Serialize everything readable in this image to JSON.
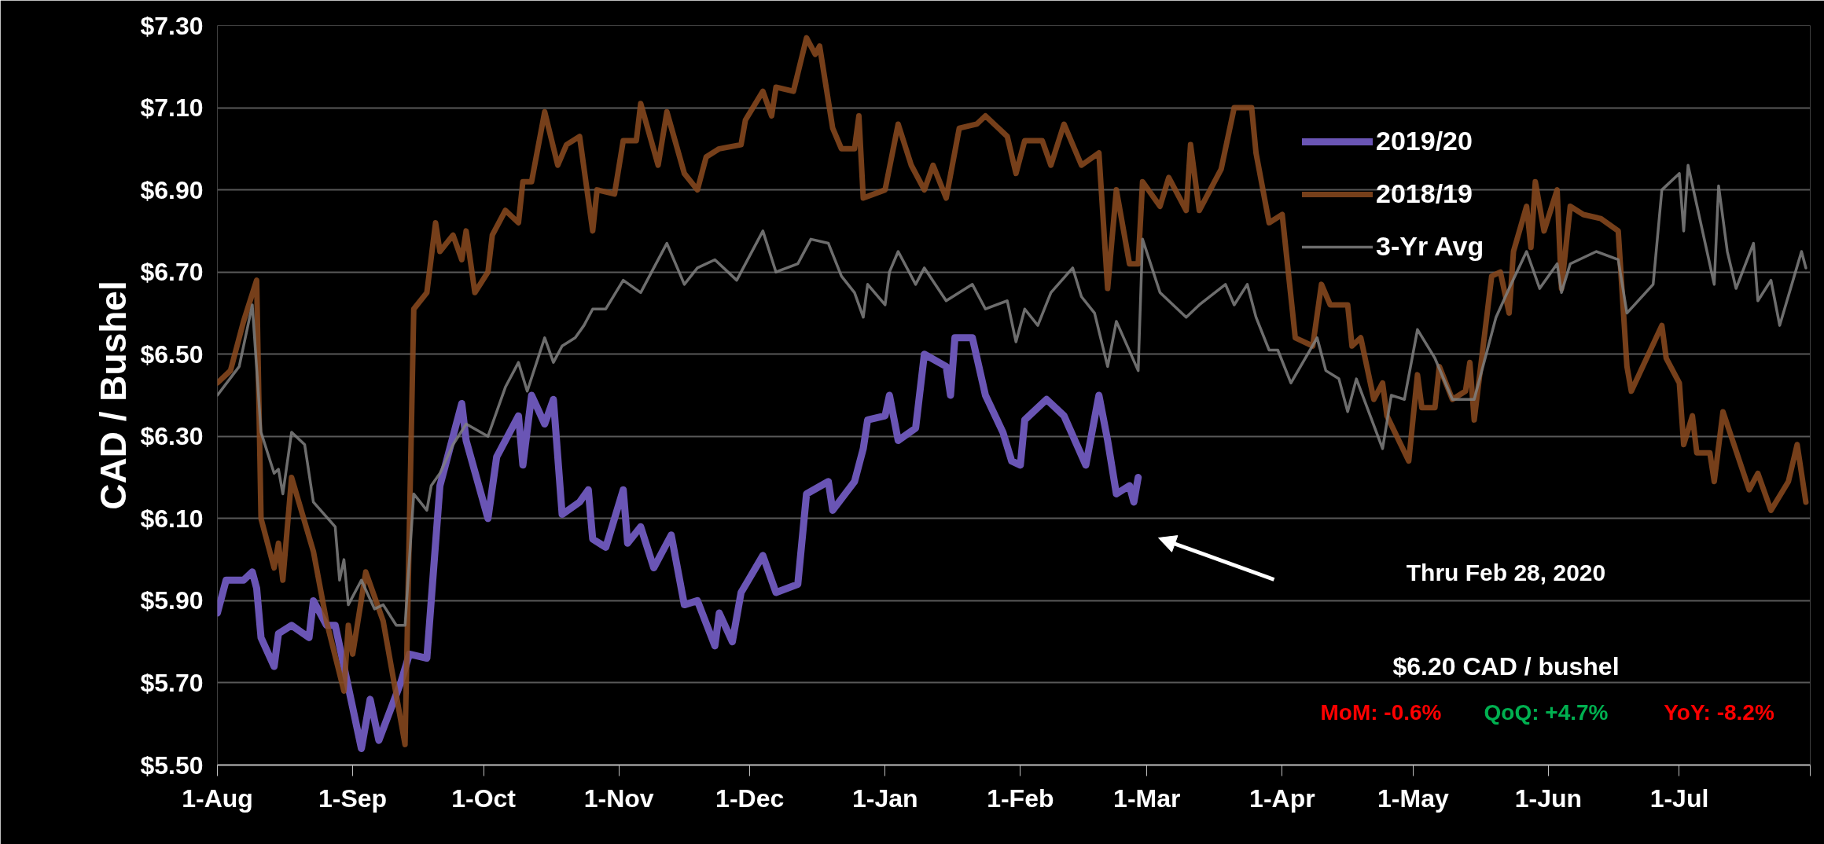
{
  "chart_data": {
    "type": "line",
    "ylabel": "CAD / Bushel",
    "xlim": [
      "2019-08-01",
      "2020-07-31"
    ],
    "xticks": [
      {
        "value": "2019-08-01",
        "label": "1-Aug"
      },
      {
        "value": "2019-09-01",
        "label": "1-Sep"
      },
      {
        "value": "2019-10-01",
        "label": "1-Oct"
      },
      {
        "value": "2019-11-01",
        "label": "1-Nov"
      },
      {
        "value": "2019-12-01",
        "label": "1-Dec"
      },
      {
        "value": "2020-01-01",
        "label": "1-Jan"
      },
      {
        "value": "2020-02-01",
        "label": "1-Feb"
      },
      {
        "value": "2020-03-01",
        "label": "1-Mar"
      },
      {
        "value": "2020-04-01",
        "label": "1-Apr"
      },
      {
        "value": "2020-05-01",
        "label": "1-May"
      },
      {
        "value": "2020-06-01",
        "label": "1-Jun"
      },
      {
        "value": "2020-07-01",
        "label": "1-Jul"
      },
      {
        "value": "2020-07-31",
        "label": null
      }
    ],
    "ylim": [
      5.5,
      7.3
    ],
    "yticks": [
      {
        "value": 5.5,
        "label": "$5.50"
      },
      {
        "value": 5.7,
        "label": "$5.70"
      },
      {
        "value": 5.9,
        "label": "$5.90"
      },
      {
        "value": 6.1,
        "label": "$6.10"
      },
      {
        "value": 6.3,
        "label": "$6.30"
      },
      {
        "value": 6.5,
        "label": "$6.50"
      },
      {
        "value": 6.7,
        "label": "$6.70"
      },
      {
        "value": 6.9,
        "label": "$6.90"
      },
      {
        "value": 7.1,
        "label": "$7.10"
      },
      {
        "value": 7.3,
        "label": "$7.30"
      }
    ],
    "grid": "y",
    "legend": "top right",
    "marker": "none",
    "line_style": "solid",
    "annotations": [
      "Thru Feb 28, 2020",
      "$6.20 CAD / bushel",
      "MoM: -0.6%",
      "QoQ: +4.7%",
      "YoY: -8.2%"
    ],
    "series": [
      {
        "name": "2019/20",
        "color": "#6a55b5",
        "x": [
          "2019-08-01",
          "2019-08-03",
          "2019-08-07",
          "2019-08-09",
          "2019-08-10",
          "2019-08-11",
          "2019-08-14",
          "2019-08-15",
          "2019-08-18",
          "2019-08-22",
          "2019-08-23",
          "2019-08-26",
          "2019-08-28",
          "2019-09-03",
          "2019-09-05",
          "2019-09-07",
          "2019-09-12",
          "2019-09-14",
          "2019-09-18",
          "2019-09-21",
          "2019-09-26",
          "2019-09-27",
          "2019-10-02",
          "2019-10-04",
          "2019-10-09",
          "2019-10-10",
          "2019-10-12",
          "2019-10-15",
          "2019-10-17",
          "2019-10-19",
          "2019-10-23",
          "2019-10-25",
          "2019-10-26",
          "2019-10-29",
          "2019-11-02",
          "2019-11-03",
          "2019-11-06",
          "2019-11-09",
          "2019-11-13",
          "2019-11-16",
          "2019-11-19",
          "2019-11-23",
          "2019-11-24",
          "2019-11-27",
          "2019-11-29",
          "2019-12-04",
          "2019-12-07",
          "2019-12-12",
          "2019-12-14",
          "2019-12-19",
          "2019-12-20",
          "2019-12-25",
          "2019-12-27",
          "2019-12-28",
          "2020-01-01",
          "2020-01-02",
          "2020-01-04",
          "2020-01-08",
          "2020-01-10",
          "2020-01-15",
          "2020-01-16",
          "2020-01-17",
          "2020-01-21",
          "2020-01-24",
          "2020-01-28",
          "2020-01-30",
          "2020-02-01",
          "2020-02-02",
          "2020-02-07",
          "2020-02-11",
          "2020-02-16",
          "2020-02-19",
          "2020-02-21",
          "2020-02-23",
          "2020-02-26",
          "2020-02-27",
          "2020-02-28"
        ],
        "values": [
          5.87,
          5.95,
          5.95,
          5.97,
          5.93,
          5.81,
          5.74,
          5.82,
          5.84,
          5.81,
          5.9,
          5.84,
          5.84,
          5.54,
          5.66,
          5.56,
          5.7,
          5.77,
          5.76,
          6.18,
          6.38,
          6.29,
          6.1,
          6.25,
          6.35,
          6.23,
          6.4,
          6.33,
          6.39,
          6.11,
          6.14,
          6.17,
          6.05,
          6.03,
          6.17,
          6.04,
          6.08,
          5.98,
          6.06,
          5.89,
          5.9,
          5.79,
          5.87,
          5.8,
          5.92,
          6.01,
          5.92,
          5.94,
          6.16,
          6.19,
          6.12,
          6.19,
          6.27,
          6.34,
          6.35,
          6.4,
          6.29,
          6.32,
          6.5,
          6.47,
          6.4,
          6.54,
          6.54,
          6.4,
          6.31,
          6.24,
          6.23,
          6.34,
          6.39,
          6.35,
          6.23,
          6.4,
          6.29,
          6.16,
          6.18,
          6.14,
          6.2
        ]
      },
      {
        "name": "2018/19",
        "color": "#8b4a1e",
        "x": [
          "2019-08-01",
          "2019-08-04",
          "2019-08-07",
          "2019-08-10",
          "2019-08-11",
          "2019-08-14",
          "2019-08-15",
          "2019-08-16",
          "2019-08-18",
          "2019-08-23",
          "2019-08-26",
          "2019-08-30",
          "2019-08-31",
          "2019-09-01",
          "2019-09-04",
          "2019-09-08",
          "2019-09-13",
          "2019-09-15",
          "2019-09-18",
          "2019-09-20",
          "2019-09-21",
          "2019-09-24",
          "2019-09-26",
          "2019-09-27",
          "2019-09-29",
          "2019-10-02",
          "2019-10-03",
          "2019-10-06",
          "2019-10-09",
          "2019-10-10",
          "2019-10-12",
          "2019-10-15",
          "2019-10-18",
          "2019-10-20",
          "2019-10-23",
          "2019-10-26",
          "2019-10-27",
          "2019-10-31",
          "2019-11-02",
          "2019-11-05",
          "2019-11-06",
          "2019-11-10",
          "2019-11-12",
          "2019-11-16",
          "2019-11-19",
          "2019-11-21",
          "2019-11-24",
          "2019-11-29",
          "2019-11-30",
          "2019-12-04",
          "2019-12-06",
          "2019-12-07",
          "2019-12-11",
          "2019-12-14",
          "2019-12-16",
          "2019-12-17",
          "2019-12-20",
          "2019-12-22",
          "2019-12-25",
          "2019-12-26",
          "2019-12-27",
          "2020-01-01",
          "2020-01-04",
          "2020-01-07",
          "2020-01-10",
          "2020-01-12",
          "2020-01-15",
          "2020-01-18",
          "2020-01-22",
          "2020-01-24",
          "2020-01-29",
          "2020-01-31",
          "2020-02-02",
          "2020-02-06",
          "2020-02-08",
          "2020-02-11",
          "2020-02-15",
          "2020-02-19",
          "2020-02-21",
          "2020-02-23",
          "2020-02-26",
          "2020-02-28",
          "2020-02-29",
          "2020-03-04",
          "2020-03-06",
          "2020-03-10",
          "2020-03-11",
          "2020-03-13",
          "2020-03-18",
          "2020-03-21",
          "2020-03-25",
          "2020-03-26",
          "2020-03-29",
          "2020-04-01",
          "2020-04-04",
          "2020-04-08",
          "2020-04-10",
          "2020-04-12",
          "2020-04-16",
          "2020-04-17",
          "2020-04-19",
          "2020-04-22",
          "2020-04-24",
          "2020-04-25",
          "2020-04-30",
          "2020-05-02",
          "2020-05-03",
          "2020-05-06",
          "2020-05-07",
          "2020-05-10",
          "2020-05-13",
          "2020-05-14",
          "2020-05-15",
          "2020-05-19",
          "2020-05-21",
          "2020-05-23",
          "2020-05-24",
          "2020-05-27",
          "2020-05-28",
          "2020-05-29",
          "2020-05-31",
          "2020-06-03",
          "2020-06-04",
          "2020-06-06",
          "2020-06-09",
          "2020-06-13",
          "2020-06-17",
          "2020-06-19",
          "2020-06-20",
          "2020-06-27",
          "2020-06-28",
          "2020-07-01",
          "2020-07-02",
          "2020-07-04",
          "2020-07-05",
          "2020-07-08",
          "2020-07-09",
          "2020-07-11",
          "2020-07-17",
          "2020-07-19",
          "2020-07-22",
          "2020-07-26",
          "2020-07-28",
          "2020-07-30"
        ],
        "values": [
          6.43,
          6.46,
          6.58,
          6.68,
          6.1,
          5.98,
          6.04,
          5.95,
          6.2,
          6.02,
          5.85,
          5.68,
          5.84,
          5.77,
          5.97,
          5.85,
          5.55,
          6.61,
          6.65,
          6.82,
          6.75,
          6.79,
          6.73,
          6.8,
          6.65,
          6.7,
          6.79,
          6.85,
          6.82,
          6.92,
          6.92,
          7.09,
          6.96,
          7.01,
          7.03,
          6.8,
          6.9,
          6.89,
          7.02,
          7.02,
          7.11,
          6.96,
          7.09,
          6.94,
          6.9,
          6.98,
          7.0,
          7.01,
          7.07,
          7.14,
          7.08,
          7.15,
          7.14,
          7.27,
          7.23,
          7.25,
          7.05,
          7.0,
          7.0,
          7.08,
          6.88,
          6.9,
          7.06,
          6.96,
          6.9,
          6.96,
          6.88,
          7.05,
          7.06,
          7.08,
          7.03,
          6.94,
          7.02,
          7.02,
          6.96,
          7.06,
          6.96,
          6.99,
          6.66,
          6.9,
          6.72,
          6.72,
          6.92,
          6.86,
          6.93,
          6.85,
          7.01,
          6.85,
          6.95,
          7.1,
          7.1,
          6.99,
          6.82,
          6.84,
          6.54,
          6.52,
          6.67,
          6.62,
          6.62,
          6.52,
          6.54,
          6.39,
          6.43,
          6.35,
          6.24,
          6.45,
          6.37,
          6.37,
          6.47,
          6.39,
          6.41,
          6.48,
          6.34,
          6.69,
          6.7,
          6.6,
          6.75,
          6.86,
          6.76,
          6.92,
          6.8,
          6.9,
          6.66,
          6.86,
          6.84,
          6.83,
          6.8,
          6.47,
          6.41,
          6.57,
          6.49,
          6.43,
          6.28,
          6.35,
          6.26,
          6.26,
          6.19,
          6.36,
          6.17,
          6.21,
          6.12,
          6.19,
          6.28,
          6.14
        ]
      },
      {
        "name": "3-Yr Avg",
        "color": "#808080",
        "x": [
          "2019-08-01",
          "2019-08-06",
          "2019-08-09",
          "2019-08-11",
          "2019-08-14",
          "2019-08-15",
          "2019-08-16",
          "2019-08-18",
          "2019-08-21",
          "2019-08-23",
          "2019-08-28",
          "2019-08-29",
          "2019-08-30",
          "2019-08-31",
          "2019-09-03",
          "2019-09-06",
          "2019-09-08",
          "2019-09-11",
          "2019-09-13",
          "2019-09-15",
          "2019-09-18",
          "2019-09-19",
          "2019-09-21",
          "2019-09-24",
          "2019-09-27",
          "2019-10-02",
          "2019-10-06",
          "2019-10-09",
          "2019-10-11",
          "2019-10-15",
          "2019-10-17",
          "2019-10-19",
          "2019-10-22",
          "2019-10-24",
          "2019-10-26",
          "2019-10-29",
          "2019-11-02",
          "2019-11-06",
          "2019-11-09",
          "2019-11-12",
          "2019-11-16",
          "2019-11-19",
          "2019-11-23",
          "2019-11-28",
          "2019-12-04",
          "2019-12-07",
          "2019-12-12",
          "2019-12-15",
          "2019-12-19",
          "2019-12-22",
          "2019-12-25",
          "2019-12-27",
          "2019-12-28",
          "2020-01-01",
          "2020-01-02",
          "2020-01-04",
          "2020-01-08",
          "2020-01-10",
          "2020-01-15",
          "2020-01-21",
          "2020-01-24",
          "2020-01-29",
          "2020-01-31",
          "2020-02-02",
          "2020-02-05",
          "2020-02-08",
          "2020-02-13",
          "2020-02-15",
          "2020-02-18",
          "2020-02-21",
          "2020-02-23",
          "2020-02-28",
          "2020-02-29",
          "2020-03-04",
          "2020-03-10",
          "2020-03-13",
          "2020-03-19",
          "2020-03-21",
          "2020-03-24",
          "2020-03-26",
          "2020-03-29",
          "2020-03-31",
          "2020-04-03",
          "2020-04-09",
          "2020-04-11",
          "2020-04-14",
          "2020-04-16",
          "2020-04-18",
          "2020-04-24",
          "2020-04-26",
          "2020-04-29",
          "2020-05-02",
          "2020-05-06",
          "2020-05-10",
          "2020-05-15",
          "2020-05-20",
          "2020-05-23",
          "2020-05-27",
          "2020-05-30",
          "2020-06-03",
          "2020-06-04",
          "2020-06-06",
          "2020-06-12",
          "2020-06-17",
          "2020-06-19",
          "2020-06-25",
          "2020-06-27",
          "2020-07-01",
          "2020-07-02",
          "2020-07-03",
          "2020-07-09",
          "2020-07-10",
          "2020-07-12",
          "2020-07-14",
          "2020-07-18",
          "2020-07-19",
          "2020-07-22",
          "2020-07-24",
          "2020-07-29",
          "2020-07-30"
        ],
        "values": [
          6.4,
          6.47,
          6.62,
          6.31,
          6.21,
          6.22,
          6.16,
          6.31,
          6.28,
          6.14,
          6.08,
          5.95,
          6.0,
          5.89,
          5.95,
          5.88,
          5.89,
          5.84,
          5.84,
          6.16,
          6.12,
          6.18,
          6.21,
          6.28,
          6.33,
          6.3,
          6.42,
          6.48,
          6.41,
          6.54,
          6.48,
          6.52,
          6.54,
          6.57,
          6.61,
          6.61,
          6.68,
          6.65,
          6.71,
          6.77,
          6.67,
          6.71,
          6.73,
          6.68,
          6.8,
          6.7,
          6.72,
          6.78,
          6.77,
          6.69,
          6.65,
          6.59,
          6.67,
          6.62,
          6.7,
          6.75,
          6.67,
          6.71,
          6.63,
          6.67,
          6.61,
          6.63,
          6.53,
          6.61,
          6.57,
          6.65,
          6.71,
          6.64,
          6.6,
          6.47,
          6.58,
          6.46,
          6.78,
          6.65,
          6.59,
          6.62,
          6.67,
          6.62,
          6.67,
          6.59,
          6.51,
          6.51,
          6.43,
          6.54,
          6.46,
          6.44,
          6.36,
          6.44,
          6.27,
          6.4,
          6.39,
          6.56,
          6.49,
          6.39,
          6.39,
          6.59,
          6.66,
          6.75,
          6.66,
          6.72,
          6.65,
          6.72,
          6.75,
          6.73,
          6.6,
          6.67,
          6.9,
          6.94,
          6.8,
          6.96,
          6.67,
          6.91,
          6.75,
          6.66,
          6.77,
          6.63,
          6.68,
          6.57,
          6.75,
          6.71
        ]
      }
    ]
  }
}
